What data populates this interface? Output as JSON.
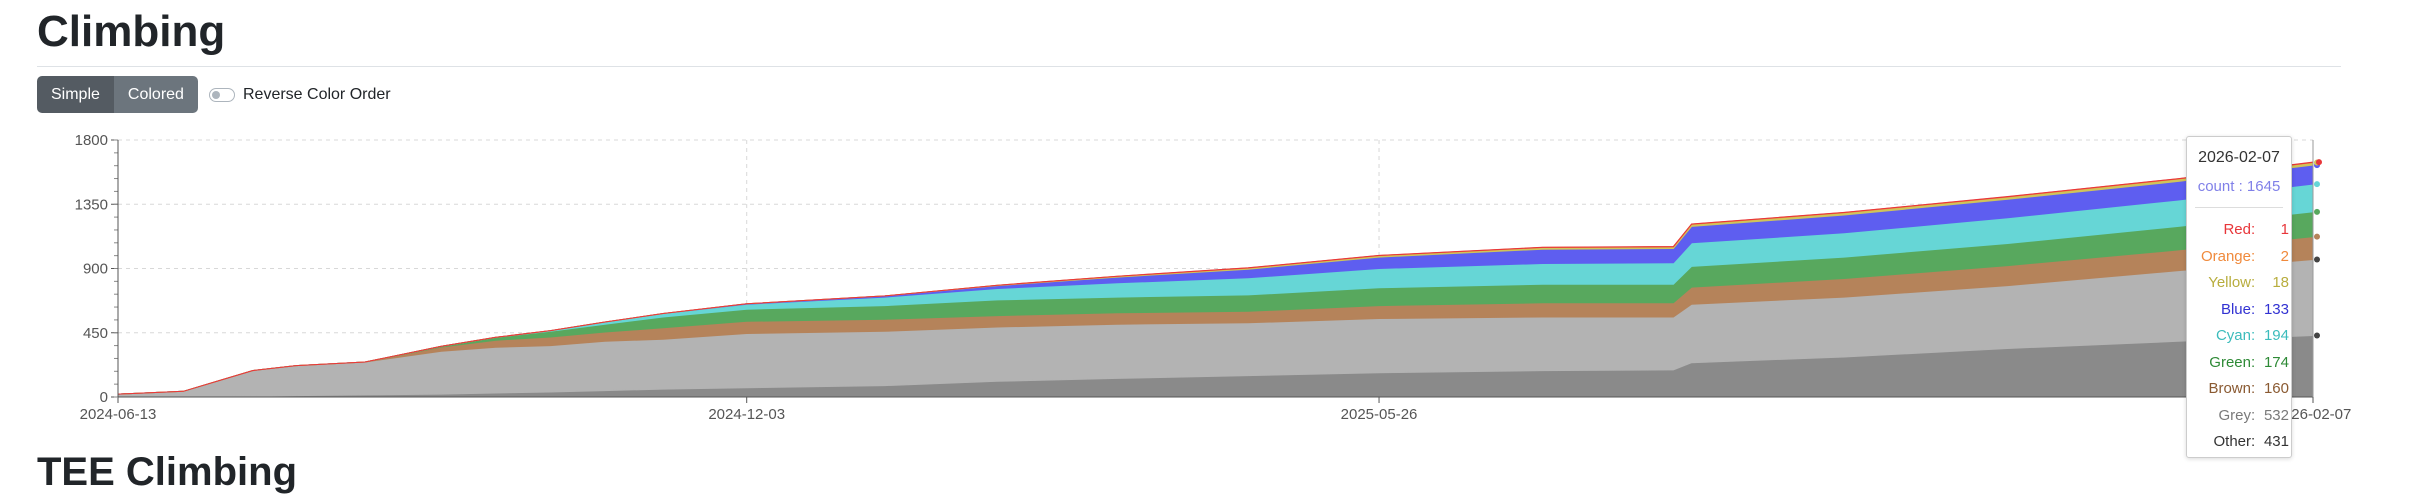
{
  "page": {
    "title": "Climbing",
    "next_section_title": "TEE Climbing"
  },
  "controls": {
    "mode_buttons": [
      {
        "label": "Simple",
        "active": true
      },
      {
        "label": "Colored",
        "active": false
      }
    ],
    "reverse_toggle": {
      "label": "Reverse Color Order",
      "checked": false
    }
  },
  "chart_data": {
    "type": "area",
    "stacked": true,
    "x_axis": {
      "type": "date",
      "range": [
        "2024-06-13",
        "2026-02-07"
      ],
      "tick_labels": [
        "2024-06-13",
        "2024-12-03",
        "2025-05-26",
        "2026-02-07"
      ]
    },
    "y_axis": {
      "range": [
        0,
        1800
      ],
      "tick_labels": [
        "0",
        "450",
        "900",
        "1350",
        "1800"
      ]
    },
    "grid": true,
    "legend": "none",
    "x": [
      "2024-06-13",
      "2024-07-01",
      "2024-07-20",
      "2024-08-01",
      "2024-08-20",
      "2024-09-10",
      "2024-09-25",
      "2024-10-10",
      "2024-10-25",
      "2024-11-10",
      "2024-12-03",
      "2025-01-10",
      "2025-02-10",
      "2025-03-15",
      "2025-04-20",
      "2025-05-26",
      "2025-07-10",
      "2025-08-15",
      "2025-08-20",
      "2025-10-01",
      "2025-11-15",
      "2026-01-01",
      "2026-02-07"
    ],
    "series": [
      {
        "name": "Other",
        "color": "#8a8a8a",
        "values": [
          0,
          0,
          5,
          10,
          15,
          20,
          28,
          35,
          45,
          55,
          65,
          80,
          110,
          130,
          150,
          170,
          185,
          190,
          240,
          280,
          340,
          390,
          431
        ]
      },
      {
        "name": "Grey",
        "color": "#b3b3b3",
        "values": [
          20,
          40,
          180,
          210,
          230,
          300,
          320,
          325,
          345,
          350,
          380,
          380,
          380,
          380,
          370,
          380,
          375,
          370,
          410,
          420,
          440,
          495,
          532
        ]
      },
      {
        "name": "Brown",
        "color": "#b5835a",
        "values": [
          0,
          0,
          0,
          0,
          0,
          30,
          50,
          60,
          65,
          80,
          85,
          85,
          80,
          80,
          80,
          90,
          100,
          100,
          120,
          130,
          140,
          145,
          160
        ]
      },
      {
        "name": "Green",
        "color": "#58a85e",
        "values": [
          0,
          0,
          0,
          0,
          0,
          5,
          20,
          40,
          55,
          75,
          85,
          95,
          110,
          110,
          115,
          125,
          130,
          130,
          145,
          150,
          155,
          165,
          174
        ]
      },
      {
        "name": "Cyan",
        "color": "#66d6d6",
        "values": [
          0,
          0,
          0,
          0,
          0,
          0,
          0,
          5,
          15,
          25,
          35,
          60,
          80,
          100,
          120,
          135,
          145,
          150,
          165,
          170,
          180,
          185,
          194
        ]
      },
      {
        "name": "Blue",
        "color": "#5e5ef0",
        "values": [
          0,
          0,
          0,
          0,
          0,
          0,
          0,
          0,
          0,
          0,
          3,
          8,
          20,
          40,
          60,
          80,
          100,
          100,
          115,
          125,
          130,
          130,
          133
        ]
      },
      {
        "name": "Yellow",
        "color": "#cfc45a",
        "values": [
          0,
          0,
          0,
          0,
          0,
          0,
          0,
          0,
          0,
          0,
          0,
          0,
          2,
          5,
          8,
          10,
          12,
          12,
          14,
          15,
          16,
          17,
          18
        ]
      },
      {
        "name": "Orange",
        "color": "#f08a3c",
        "values": [
          0,
          0,
          0,
          0,
          0,
          0,
          0,
          0,
          0,
          0,
          0,
          0,
          1,
          1,
          1,
          1,
          1,
          1,
          2,
          2,
          2,
          2,
          2
        ]
      },
      {
        "name": "Red",
        "color": "#e8363a",
        "values": [
          0,
          0,
          0,
          0,
          0,
          0,
          0,
          0,
          0,
          0,
          0,
          0,
          0,
          0,
          1,
          1,
          1,
          1,
          1,
          1,
          1,
          1,
          1
        ]
      }
    ],
    "tooltip": {
      "date": "2026-02-07",
      "count_label": "count",
      "count_value": "1645",
      "count_color": "#8080e8",
      "rows": [
        {
          "name": "Red",
          "value": "1",
          "color": "#e8363a"
        },
        {
          "name": "Orange",
          "value": "2",
          "color": "#f08a3c"
        },
        {
          "name": "Yellow",
          "value": "18",
          "color": "#b8ad3e"
        },
        {
          "name": "Blue",
          "value": "133",
          "color": "#3232d2"
        },
        {
          "name": "Cyan",
          "value": "194",
          "color": "#3cbcbc"
        },
        {
          "name": "Green",
          "value": "174",
          "color": "#2e8a36"
        },
        {
          "name": "Brown",
          "value": "160",
          "color": "#8a5a32"
        },
        {
          "name": "Grey",
          "value": "532",
          "color": "#7a7a7a"
        },
        {
          "name": "Other",
          "value": "431",
          "color": "#333333"
        }
      ]
    }
  }
}
